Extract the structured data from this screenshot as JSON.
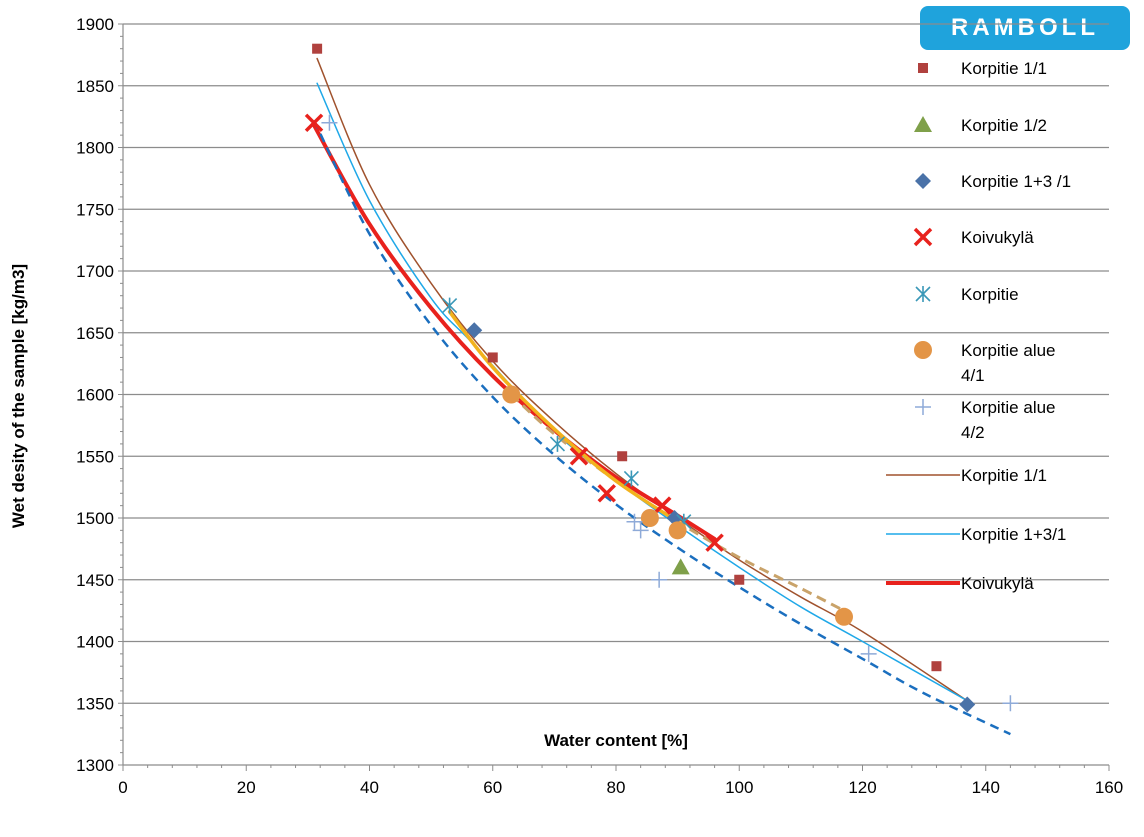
{
  "logo_text": "RAMBOLL",
  "chart_data": {
    "type": "scatter",
    "title": "",
    "xlabel": "Water content [%]",
    "ylabel": "Wet desity of the sample [kg/m3]",
    "xlim": [
      0,
      160
    ],
    "ylim": [
      1300,
      1900
    ],
    "xticks": [
      "0",
      "20",
      "40",
      "60",
      "80",
      "100",
      "120",
      "140",
      "160"
    ],
    "yticks": [
      "1300",
      "1350",
      "1400",
      "1450",
      "1500",
      "1550",
      "1600",
      "1650",
      "1700",
      "1750",
      "1800",
      "1850",
      "1900"
    ],
    "grid": "horizontal",
    "legend_position": "right",
    "series": [
      {
        "name": "Korpitie 1/1",
        "kind": "points",
        "marker": "square",
        "color": "#b0413e",
        "points": [
          [
            31.5,
            1880
          ],
          [
            60,
            1630
          ],
          [
            81,
            1550
          ],
          [
            100,
            1450
          ],
          [
            132,
            1380
          ]
        ]
      },
      {
        "name": "Korpitie 1/2",
        "kind": "points",
        "marker": "triangle",
        "color": "#7fa04a",
        "points": [
          [
            90.5,
            1460
          ]
        ]
      },
      {
        "name": "Korpitie 1+3 /1",
        "kind": "points",
        "marker": "diamond",
        "color": "#4a72a8",
        "points": [
          [
            57,
            1652
          ],
          [
            89.5,
            1500
          ],
          [
            137,
            1349
          ]
        ]
      },
      {
        "name": "Koivukylä",
        "kind": "points",
        "marker": "x",
        "color": "#e8221d",
        "points": [
          [
            31,
            1820
          ],
          [
            74,
            1550
          ],
          [
            78.5,
            1520
          ],
          [
            87.5,
            1510
          ],
          [
            96,
            1480
          ]
        ]
      },
      {
        "name": "Korpitie",
        "kind": "points",
        "marker": "asterisk",
        "color": "#3a98b8",
        "points": [
          [
            53,
            1672
          ],
          [
            70.5,
            1560
          ],
          [
            82.5,
            1532
          ],
          [
            91,
            1497
          ]
        ]
      },
      {
        "name": "Korpitie alue 4/1",
        "kind": "points",
        "marker": "circle",
        "color": "#e39547",
        "points": [
          [
            63,
            1600
          ],
          [
            85.5,
            1500
          ],
          [
            90,
            1490
          ],
          [
            117,
            1420
          ]
        ]
      },
      {
        "name": "Korpitie alue 4/2",
        "kind": "points",
        "marker": "plus",
        "color": "#8eaad8",
        "points": [
          [
            33.5,
            1820
          ],
          [
            83,
            1497
          ],
          [
            84,
            1490
          ],
          [
            87,
            1450
          ],
          [
            121,
            1390
          ],
          [
            144,
            1350
          ]
        ]
      },
      {
        "name": "Korpitie 1/1",
        "kind": "line",
        "color": "#a0522d",
        "width": 1.5,
        "points": [
          [
            31.5,
            1872
          ],
          [
            40,
            1770
          ],
          [
            50,
            1690
          ],
          [
            60,
            1627
          ],
          [
            70,
            1578
          ],
          [
            80,
            1536
          ],
          [
            90,
            1500
          ],
          [
            100,
            1466
          ],
          [
            110,
            1436
          ],
          [
            120,
            1408
          ],
          [
            137,
            1352
          ]
        ]
      },
      {
        "name": "Korpitie 1+3/1",
        "kind": "line",
        "color": "#1fa8e8",
        "width": 1.5,
        "points": [
          [
            31.5,
            1852
          ],
          [
            40,
            1757
          ],
          [
            50,
            1678
          ],
          [
            57,
            1640
          ],
          [
            70,
            1570
          ],
          [
            80,
            1530
          ],
          [
            90,
            1494
          ],
          [
            100,
            1460
          ],
          [
            110,
            1428
          ],
          [
            120,
            1400
          ],
          [
            137,
            1352
          ]
        ]
      },
      {
        "name": "Koivukylä",
        "kind": "line",
        "color": "#e8221d",
        "width": 4,
        "points": [
          [
            31,
            1818
          ],
          [
            40,
            1738
          ],
          [
            50,
            1670
          ],
          [
            60,
            1615
          ],
          [
            70,
            1571
          ],
          [
            80,
            1533
          ],
          [
            90,
            1502
          ],
          [
            96,
            1483
          ]
        ]
      },
      {
        "name": "",
        "kind": "line",
        "color": "#1b6fbf",
        "width": 2.5,
        "dash": "9 6",
        "points": [
          [
            31,
            1822
          ],
          [
            40,
            1730
          ],
          [
            50,
            1656
          ],
          [
            60,
            1598
          ],
          [
            70,
            1551
          ],
          [
            80,
            1511
          ],
          [
            90,
            1476
          ],
          [
            100,
            1444
          ],
          [
            110,
            1414
          ],
          [
            120,
            1386
          ],
          [
            130,
            1358
          ],
          [
            144,
            1325
          ]
        ]
      },
      {
        "name": "",
        "kind": "line",
        "color": "#c9a36a",
        "width": 3,
        "dash": "10 6",
        "points": [
          [
            63,
            1600
          ],
          [
            70,
            1568
          ],
          [
            80,
            1530
          ],
          [
            90,
            1497
          ],
          [
            100,
            1468
          ],
          [
            110,
            1443
          ],
          [
            117,
            1425
          ]
        ]
      },
      {
        "name": "",
        "kind": "line",
        "color": "#f2b21d",
        "width": 3.5,
        "points": [
          [
            53,
            1667
          ],
          [
            60,
            1622
          ],
          [
            70,
            1572
          ],
          [
            80,
            1530
          ],
          [
            91,
            1494
          ]
        ]
      }
    ]
  }
}
